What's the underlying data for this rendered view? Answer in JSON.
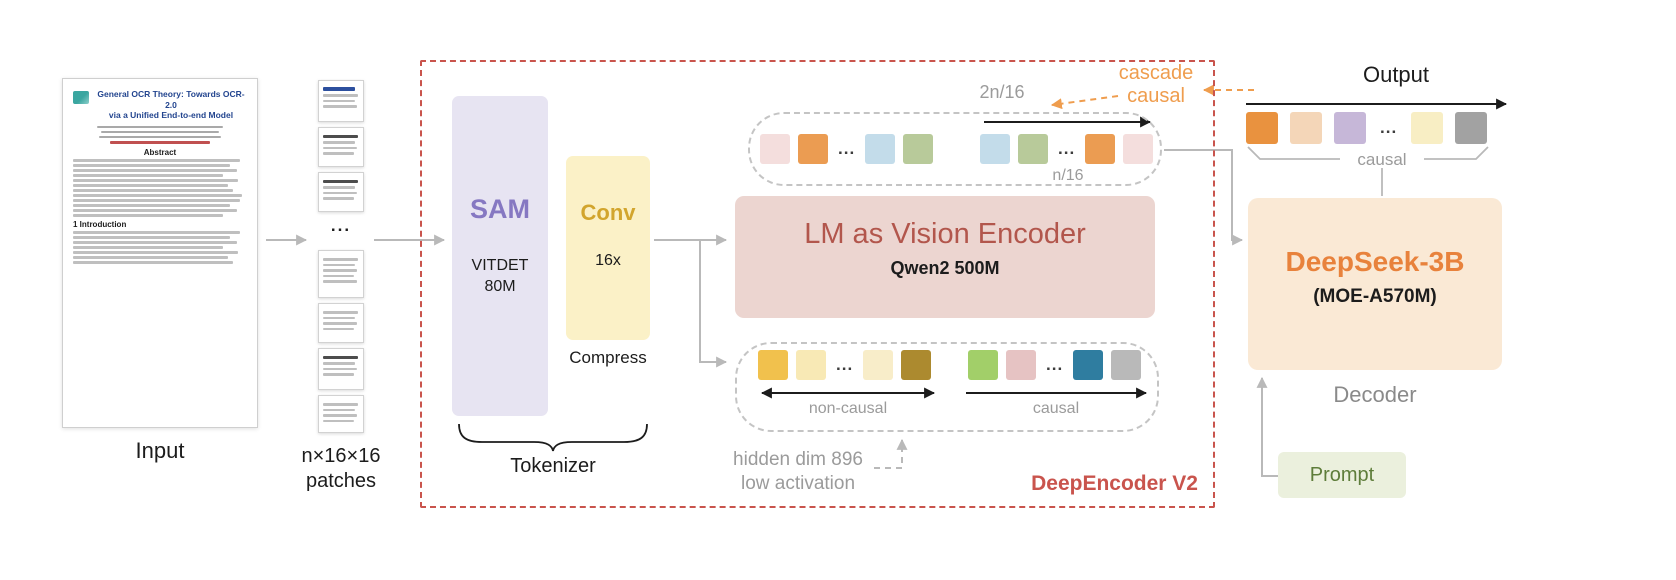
{
  "input": {
    "label": "Input",
    "doc_title_line1": "General OCR Theory: Towards OCR-2.0",
    "doc_title_line2": "via a Unified End-to-end Model",
    "abstract_heading": "Abstract",
    "intro_heading": "1  Introduction"
  },
  "patches": {
    "ellipsis": "...",
    "label_line1": "n×16×16",
    "label_line2": "patches"
  },
  "encoder": {
    "title": "DeepEncoder V2",
    "sam": {
      "name": "SAM",
      "arch": "VITDET",
      "params": "80M"
    },
    "conv": {
      "name": "Conv",
      "ratio": "16x",
      "caption": "Compress"
    },
    "tokenizer_label": "Tokenizer",
    "lm": {
      "title": "LM as Vision Encoder",
      "subtitle": "Qwen2 500M"
    },
    "annotations": {
      "two_n_over_16": "2n/16",
      "n_over_16": "n/16",
      "cascade_line1": "cascade",
      "cascade_line2": "causal",
      "non_causal": "non-causal",
      "causal": "causal",
      "hidden_dim_line1": "hidden dim 896",
      "hidden_dim_line2": "low activation"
    }
  },
  "decoder": {
    "title": "DeepSeek-3B",
    "subtitle": "(MOE-A570M)",
    "caption": "Decoder"
  },
  "output": {
    "label": "Output",
    "causal": "causal"
  },
  "prompt": {
    "label": "Prompt"
  },
  "tokens": {
    "top_group1": [
      "#f4dedd",
      "#eb9c52",
      "...",
      "#c3dcea",
      "#b8ca9a"
    ],
    "top_group2": [
      "#c3dcea",
      "#b8ca9a",
      "...",
      "#eb9c52",
      "#f4dedd"
    ],
    "bottom_group1": [
      "#f1c14d",
      "#f8e9b5",
      "...",
      "#f8edc9",
      "#ac8a2f"
    ],
    "bottom_group2": [
      "#a2cf69",
      "#e6c3c3",
      "...",
      "#2f7da0",
      "#b9b9b9"
    ],
    "output_row": [
      "#e9923f",
      "#f4d6b8",
      "#c6b7d8",
      "...",
      "#f8eec4",
      "#a2a2a2"
    ]
  },
  "colors": {
    "encoder_border": "#c9544d",
    "sam_fill": "#e7e4f2",
    "sam_text": "#8678c2",
    "conv_fill": "#fbf1c7",
    "conv_text": "#d2a52d",
    "lm_fill": "#ecd5d0",
    "lm_title": "#b2564c",
    "deepseek_fill": "#fae9d5",
    "deepseek_text": "#e8823c",
    "prompt_fill": "#ebf0dd",
    "prompt_text": "#5e7d3a",
    "cascade_text": "#ef9d4e",
    "muted_label": "#9b9b9b",
    "arrow_gray": "#b9b9b9"
  }
}
